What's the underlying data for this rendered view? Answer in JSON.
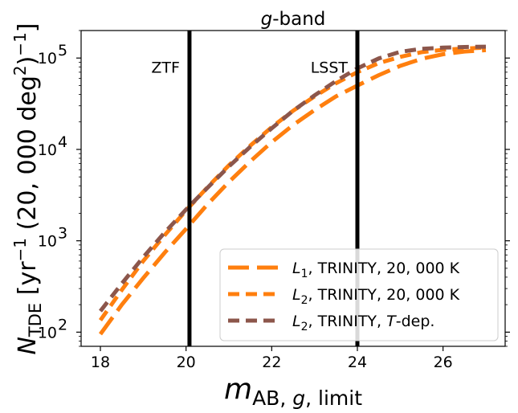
{
  "chart_data": {
    "type": "line",
    "title": {
      "italic": "g",
      "rest": "-band"
    },
    "xlabel": {
      "m": "m",
      "sub": "AB, ",
      "g": "g",
      "tail": ", limit"
    },
    "ylabel": {
      "n": "N",
      "sub": "TDE",
      "b1": " [yr",
      "e1": "−1",
      "b2": " (20, 000 deg",
      "e2": "2",
      "b3": ")",
      "e3": "−1",
      "b4": "]"
    },
    "xlim": [
      17.55,
      27.45
    ],
    "ylim": [
      70,
      200000
    ],
    "yscale": "log",
    "xticks": [
      18,
      20,
      22,
      24,
      26
    ],
    "xtick_labels": [
      "18",
      "20",
      "22",
      "24",
      "26"
    ],
    "yticks": [
      100,
      1000,
      10000,
      100000
    ],
    "ytick_labels": [
      {
        "base": "10",
        "exp": "2"
      },
      {
        "base": "10",
        "exp": "3"
      },
      {
        "base": "10",
        "exp": "4"
      },
      {
        "base": "10",
        "exp": "5"
      }
    ],
    "vlines": [
      {
        "x": 20.08,
        "label": "ZTF",
        "label_y": 80000
      },
      {
        "x": 24.0,
        "label": "LSST",
        "label_y": 80000
      }
    ],
    "series": [
      {
        "name": "L1",
        "legend": {
          "main": "L",
          "sub": "1",
          "rest": ", TRINITY, 20, 000 K"
        },
        "color": "#ff7f0e",
        "dash": "long",
        "x": [
          18,
          18.5,
          19,
          19.5,
          20,
          20.5,
          21,
          21.5,
          22,
          22.5,
          23,
          23.5,
          24,
          24.5,
          25,
          25.5,
          26,
          26.5,
          27
        ],
        "y": [
          95,
          200,
          390,
          740,
          1350,
          2500,
          4400,
          7400,
          12000,
          18500,
          27000,
          38000,
          50000,
          65000,
          82000,
          98000,
          110000,
          118000,
          122000
        ]
      },
      {
        "name": "L2",
        "legend": {
          "main": "L",
          "sub": "2",
          "rest": ", TRINITY, 20, 000 K"
        },
        "color": "#ff7f0e",
        "dash": "short",
        "x": [
          18,
          18.5,
          19,
          19.5,
          20,
          20.5,
          21,
          21.5,
          22,
          22.5,
          23,
          23.5,
          24,
          24.5,
          25,
          25.5,
          26,
          26.5,
          27
        ],
        "y": [
          135,
          290,
          600,
          1150,
          2150,
          3850,
          6700,
          11000,
          17500,
          26500,
          38000,
          53000,
          70000,
          88000,
          103000,
          116000,
          123000,
          127000,
          130000
        ]
      },
      {
        "name": "L2 T-dep",
        "legend": {
          "main": "L",
          "sub": "2",
          "rest": ", TRINITY, ",
          "italic": "T",
          "rest2": "-dep."
        },
        "color": "#8c564b",
        "dash": "short",
        "x": [
          18,
          18.5,
          19,
          19.5,
          20,
          20.5,
          21,
          21.5,
          22,
          22.5,
          23,
          23.5,
          24,
          24.5,
          25,
          25.5,
          26,
          26.5,
          27
        ],
        "y": [
          170,
          340,
          660,
          1230,
          2200,
          3800,
          6500,
          10700,
          17000,
          26500,
          39000,
          56000,
          77000,
          99000,
          117000,
          126000,
          130000,
          132000,
          133000
        ]
      }
    ],
    "legend_position": "lower-right"
  }
}
